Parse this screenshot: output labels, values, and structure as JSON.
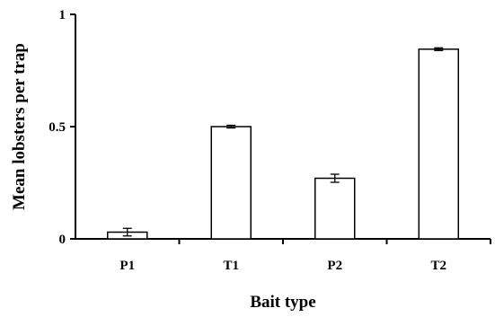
{
  "chart_data": {
    "type": "bar",
    "categories": [
      "P1",
      "T1",
      "P2",
      "T2"
    ],
    "values": [
      0.03,
      0.5,
      0.27,
      0.845
    ],
    "error": [
      0.017,
      0.006,
      0.018,
      0.006
    ],
    "xlabel": "Bait type",
    "ylabel": "Mean lobsters per trap",
    "ylim": [
      0,
      1
    ],
    "yticks": [
      {
        "value": 0,
        "label": "0"
      },
      {
        "value": 0.5,
        "label": "0.5"
      },
      {
        "value": 1,
        "label": "1"
      }
    ],
    "grid": false,
    "bar_fill": "#ffffff",
    "bar_stroke": "#000000"
  }
}
